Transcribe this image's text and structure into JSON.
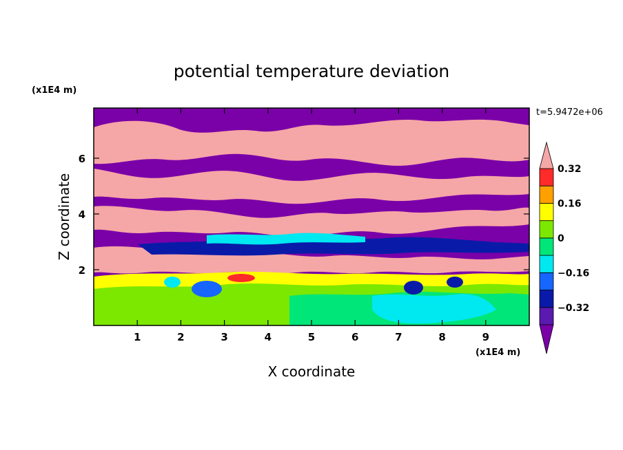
{
  "chart_data": {
    "type": "heatmap",
    "title": "potential temperature deviation",
    "xlabel": "X coordinate",
    "ylabel": "Z coordinate",
    "x_unit": "(x1E4 m)",
    "y_unit": "(x1E4 m)",
    "time_label": "t=5.9472e+06",
    "xlim": [
      0,
      10
    ],
    "ylim": [
      0,
      7.8
    ],
    "x_ticks": [
      "1",
      "2",
      "3",
      "4",
      "5",
      "6",
      "7",
      "8",
      "9"
    ],
    "y_ticks": [
      "2",
      "4",
      "6"
    ],
    "colorbar": {
      "levels": [
        -0.4,
        -0.32,
        -0.24,
        -0.16,
        -0.08,
        0,
        0.08,
        0.16,
        0.24,
        0.32,
        0.4
      ],
      "labels": [
        "0.32",
        "0.16",
        "0",
        "−0.16",
        "−0.32"
      ],
      "colors_bottom_to_top": [
        "#7a00a8",
        "#5a1ab0",
        "#0a1aa8",
        "#1666ff",
        "#00e8f0",
        "#00e678",
        "#7ce800",
        "#ffff00",
        "#ffa000",
        "#ff2a2a",
        "#f5a6a6"
      ],
      "extends": "both"
    },
    "bands": [
      {
        "zmin": 7.8,
        "zmax": 7.0,
        "value": "mixed",
        "note": "upper"
      },
      {
        "zmin": 1.8,
        "zmax": 0,
        "value": "green/cyan"
      }
    ]
  }
}
